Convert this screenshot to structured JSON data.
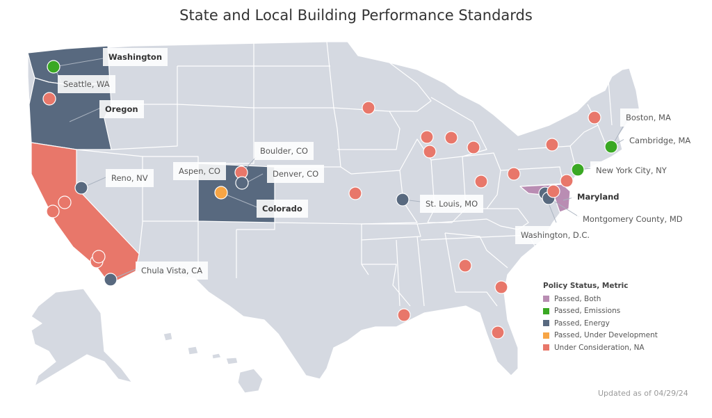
{
  "title": "State and Local Building Performance Standards",
  "updated": "Updated as of 04/29/24",
  "colors": {
    "passed_both": "#b98db3",
    "passed_emissions": "#3aa823",
    "passed_energy": "#58697f",
    "passed_under_development": "#f7a545",
    "under_consideration": "#e8776a",
    "state_default": "#d5d9e1",
    "state_border": "#ffffff"
  },
  "legend": {
    "title": "Policy Status, Metric",
    "items": [
      {
        "label": "Passed, Both",
        "status": "passed_both"
      },
      {
        "label": "Passed, Emissions",
        "status": "passed_emissions"
      },
      {
        "label": "Passed, Energy",
        "status": "passed_energy"
      },
      {
        "label": "Passed, Under Development",
        "status": "passed_under_development"
      },
      {
        "label": "Under Consideration, NA",
        "status": "under_consideration"
      }
    ]
  },
  "labels": {
    "washington": "Washington",
    "seattle": "Seattle, WA",
    "oregon": "Oregon",
    "reno": "Reno, NV",
    "boulder": "Boulder, CO",
    "aspen": "Aspen, CO",
    "denver": "Denver, CO",
    "colorado": "Colorado",
    "chula_vista": "Chula Vista, CA",
    "st_louis": "St. Louis, MO",
    "boston": "Boston, MA",
    "cambridge": "Cambridge, MA",
    "new_york": "New York City, NY",
    "maryland": "Maryland",
    "montgomery": "Montgomery County, MD",
    "washington_dc": "Washington, D.C."
  },
  "states": [
    {
      "name": "Washington",
      "status": "passed_energy"
    },
    {
      "name": "Oregon",
      "status": "passed_energy"
    },
    {
      "name": "California",
      "status": "under_consideration"
    },
    {
      "name": "Colorado",
      "status": "passed_energy"
    },
    {
      "name": "Maryland",
      "status": "passed_both"
    }
  ],
  "cities": [
    {
      "name": "Seattle, WA",
      "status": "passed_emissions"
    },
    {
      "name": "Portland, OR",
      "status": "under_consideration"
    },
    {
      "name": "Reno, NV",
      "status": "passed_energy"
    },
    {
      "name": "San Francisco, CA",
      "status": "under_consideration"
    },
    {
      "name": "San Jose, CA",
      "status": "under_consideration"
    },
    {
      "name": "Los Angeles, CA",
      "status": "under_consideration"
    },
    {
      "name": "Santa Monica, CA",
      "status": "under_consideration"
    },
    {
      "name": "Chula Vista, CA",
      "status": "passed_energy"
    },
    {
      "name": "Aspen, CO",
      "status": "passed_under_development"
    },
    {
      "name": "Boulder, CO",
      "status": "under_consideration"
    },
    {
      "name": "Denver, CO",
      "status": "passed_energy"
    },
    {
      "name": "Minneapolis, MN",
      "status": "under_consideration"
    },
    {
      "name": "Kansas City, MO",
      "status": "under_consideration"
    },
    {
      "name": "St. Louis, MO",
      "status": "passed_energy"
    },
    {
      "name": "Chicago, IL",
      "status": "under_consideration"
    },
    {
      "name": "Evanston, IL",
      "status": "under_consideration"
    },
    {
      "name": "Grand Rapids, MI",
      "status": "under_consideration"
    },
    {
      "name": "Ann Arbor, MI",
      "status": "under_consideration"
    },
    {
      "name": "Columbus, OH",
      "status": "under_consideration"
    },
    {
      "name": "Pittsburgh, PA",
      "status": "under_consideration"
    },
    {
      "name": "Rochester, NY",
      "status": "under_consideration"
    },
    {
      "name": "Burlington, VT",
      "status": "under_consideration"
    },
    {
      "name": "Boston, MA",
      "status": "under_consideration"
    },
    {
      "name": "Cambridge, MA",
      "status": "passed_emissions"
    },
    {
      "name": "New York City, NY",
      "status": "passed_emissions"
    },
    {
      "name": "Philadelphia, PA",
      "status": "under_consideration"
    },
    {
      "name": "Washington, D.C.",
      "status": "passed_energy"
    },
    {
      "name": "Montgomery County, MD",
      "status": "passed_energy"
    },
    {
      "name": "Baltimore, MD",
      "status": "under_consideration"
    },
    {
      "name": "Atlanta, GA",
      "status": "under_consideration"
    },
    {
      "name": "Savannah, GA",
      "status": "under_consideration"
    },
    {
      "name": "New Orleans, LA",
      "status": "under_consideration"
    },
    {
      "name": "Orlando, FL",
      "status": "under_consideration"
    }
  ]
}
